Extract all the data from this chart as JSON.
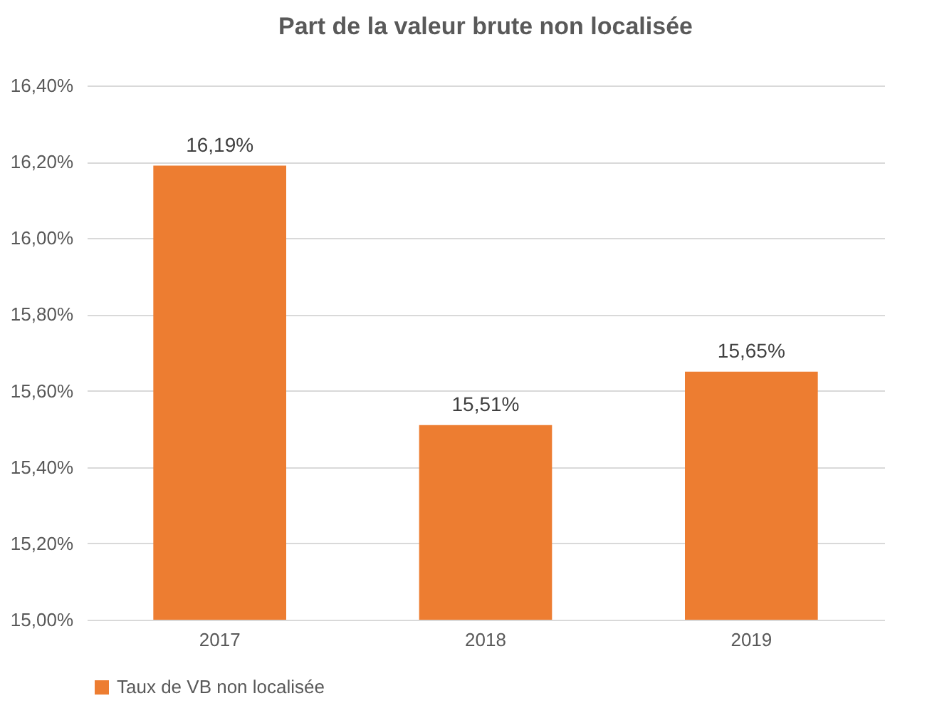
{
  "chart_data": {
    "type": "bar",
    "title": "Part de la valeur brute non localisée",
    "categories": [
      "2017",
      "2018",
      "2019"
    ],
    "series": [
      {
        "name": "Taux de VB non localisée",
        "color": "#ed7d31",
        "values": [
          16.19,
          15.51,
          15.65
        ],
        "value_labels": [
          "16,19%",
          "15,51%",
          "15,65%"
        ]
      }
    ],
    "ylim": [
      15,
      16.4
    ],
    "yticks": [
      {
        "value": 15,
        "label": "15,00%"
      },
      {
        "value": 15.2,
        "label": "15,20%"
      },
      {
        "value": 15.4,
        "label": "15,40%"
      },
      {
        "value": 15.6,
        "label": "15,60%"
      },
      {
        "value": 15.8,
        "label": "15,80%"
      },
      {
        "value": 16,
        "label": "16,00%"
      },
      {
        "value": 16.2,
        "label": "16,20%"
      },
      {
        "value": 16.4,
        "label": "16,40%"
      }
    ],
    "grid": "y",
    "legend": "bottom"
  }
}
